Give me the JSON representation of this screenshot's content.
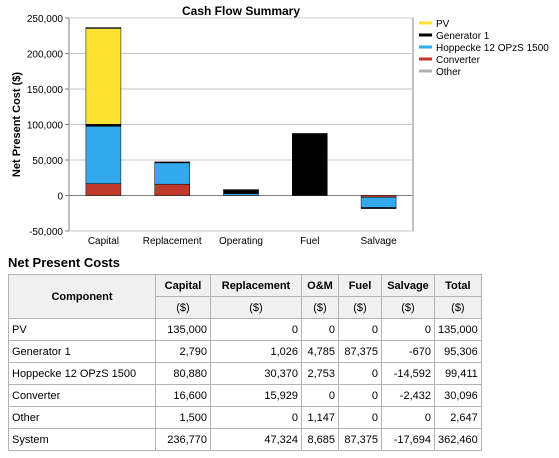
{
  "chart_data": {
    "type": "bar",
    "stacked": true,
    "title": "Cash Flow Summary",
    "xlabel": "",
    "ylabel": "Net Present Cost ($)",
    "ylim": [
      -50000,
      250000
    ],
    "yticks": [
      "250,000",
      "200,000",
      "150,000",
      "100,000",
      "50,000",
      "0",
      "-50,000"
    ],
    "grid": true,
    "legend_position": "right",
    "categories": [
      "Capital",
      "Replacement",
      "Operating",
      "Fuel",
      "Salvage"
    ],
    "series": [
      {
        "name": "PV",
        "color": "#fde233",
        "values": [
          135000,
          0,
          0,
          0,
          0
        ]
      },
      {
        "name": "Generator 1",
        "color": "#000000",
        "values": [
          2790,
          1026,
          4785,
          87375,
          -670
        ]
      },
      {
        "name": "Hoppecke 12 OPzS 1500",
        "color": "#33aaee",
        "values": [
          80880,
          30370,
          2753,
          0,
          -14592
        ]
      },
      {
        "name": "Converter",
        "color": "#c0392b",
        "values": [
          16600,
          15929,
          0,
          0,
          -2432
        ]
      },
      {
        "name": "Other",
        "color": "#b0b0b0",
        "values": [
          1500,
          0,
          1147,
          0,
          0
        ]
      }
    ]
  },
  "table": {
    "section_title": "Net Present Costs",
    "component_header": "Component",
    "headers": [
      "Capital",
      "Replacement",
      "O&M",
      "Fuel",
      "Salvage",
      "Total"
    ],
    "units": [
      "($)",
      "($)",
      "($)",
      "($)",
      "($)",
      "($)"
    ],
    "rows": [
      {
        "name": "PV",
        "values": [
          "135,000",
          "0",
          "0",
          "0",
          "0",
          "135,000"
        ]
      },
      {
        "name": "Generator 1",
        "values": [
          "2,790",
          "1,026",
          "4,785",
          "87,375",
          "-670",
          "95,306"
        ]
      },
      {
        "name": "Hoppecke 12 OPzS 1500",
        "values": [
          "80,880",
          "30,370",
          "2,753",
          "0",
          "-14,592",
          "99,411"
        ]
      },
      {
        "name": "Converter",
        "values": [
          "16,600",
          "15,929",
          "0",
          "0",
          "-2,432",
          "30,096"
        ]
      },
      {
        "name": "Other",
        "values": [
          "1,500",
          "0",
          "1,147",
          "0",
          "0",
          "2,647"
        ]
      },
      {
        "name": "System",
        "values": [
          "236,770",
          "47,324",
          "8,685",
          "87,375",
          "-17,694",
          "362,460"
        ]
      }
    ]
  }
}
